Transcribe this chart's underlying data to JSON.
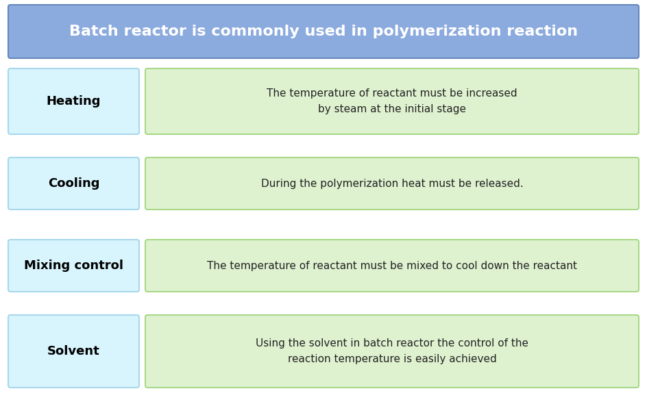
{
  "title": "Batch reactor is commonly used in polymerization reaction",
  "title_bg": "#8BAADE",
  "title_border": "#6688BB",
  "title_text_color": "#FFFFFF",
  "title_fontsize": 16,
  "bg_color": "#FFFFFF",
  "left_box_bg": "#D8F4FC",
  "left_box_border": "#A8D8EC",
  "right_box_bg": "#DFF2D0",
  "right_box_border": "#A8D888",
  "rows": [
    {
      "label": "Heating",
      "description": "The temperature of reactant must be increased\nby steam at the initial stage"
    },
    {
      "label": "Cooling",
      "description": "During the polymerization heat must be released."
    },
    {
      "label": "Mixing control",
      "description": "The temperature of reactant must be mixed to cool down the reactant"
    },
    {
      "label": "Solvent",
      "description": "Using the solvent in batch reactor the control of the\nreaction temperature is easily achieved"
    }
  ],
  "label_fontsize": 13,
  "desc_fontsize": 11,
  "label_text_color": "#000000",
  "desc_text_color": "#222222"
}
